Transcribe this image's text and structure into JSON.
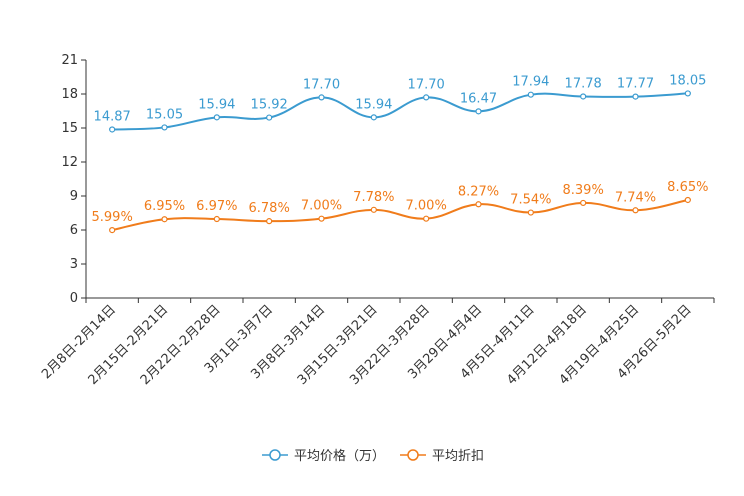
{
  "chart_data": {
    "type": "line",
    "title": "",
    "xlabel": "",
    "ylabel": "",
    "categories": [
      "2月8日-2月14日",
      "2月15日-2月21日",
      "2月22日-2月28日",
      "3月1日-3月7日",
      "3月8日-3月14日",
      "3月15日-3月21日",
      "3月22日-3月28日",
      "3月29日-4月4日",
      "4月5日-4月11日",
      "4月12日-4月18日",
      "4月19日-4月25日",
      "4月26日-5月2日"
    ],
    "ylim": [
      0,
      21
    ],
    "yticks": [
      "0",
      "3",
      "6",
      "9",
      "12",
      "15",
      "18",
      "21"
    ],
    "grid": false,
    "legend_position": "bottom",
    "series": [
      {
        "name": "平均价格（万）",
        "color": "#3b9bd0",
        "values": [
          14.87,
          15.05,
          15.94,
          15.92,
          17.7,
          15.94,
          17.7,
          16.47,
          17.94,
          17.78,
          17.77,
          18.05
        ],
        "labels": [
          "14.87",
          "15.05",
          "15.94",
          "15.92",
          "17.70",
          "15.94",
          "17.70",
          "16.47",
          "17.94",
          "17.78",
          "17.77",
          "18.05"
        ]
      },
      {
        "name": "平均折扣",
        "color": "#f07c1b",
        "values": [
          5.99,
          6.95,
          6.97,
          6.78,
          7.0,
          7.78,
          7.0,
          8.27,
          7.54,
          8.39,
          7.74,
          8.65
        ],
        "labels": [
          "5.99%",
          "6.95%",
          "6.97%",
          "6.78%",
          "7.00%",
          "7.78%",
          "7.00%",
          "8.27%",
          "7.54%",
          "8.39%",
          "7.74%",
          "8.65%"
        ]
      }
    ]
  }
}
